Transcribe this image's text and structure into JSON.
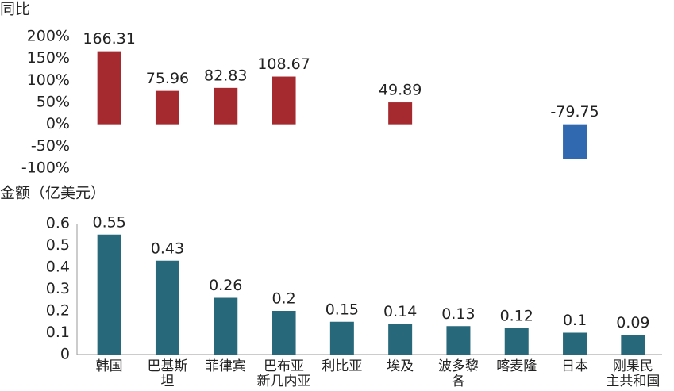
{
  "chart_data": [
    {
      "type": "bar",
      "y_label": "同比",
      "values": [
        166.31,
        75.96,
        82.83,
        108.67,
        null,
        49.89,
        null,
        null,
        -79.75,
        null
      ],
      "positive_color": "#a52a2f",
      "negative_color": "#3169b0",
      "ylim": [
        -100,
        200
      ],
      "yticks": [
        {
          "value": 200,
          "label": "200%"
        },
        {
          "value": 150,
          "label": "150%"
        },
        {
          "value": 100,
          "label": "100%"
        },
        {
          "value": 50,
          "label": "50%"
        },
        {
          "value": 0,
          "label": "0%"
        },
        {
          "value": -50,
          "label": "-50%"
        },
        {
          "value": -100,
          "label": "-100%"
        }
      ]
    },
    {
      "type": "bar",
      "y_label": "金额（亿美元）",
      "categories": [
        "韩国",
        "巴基斯\n坦",
        "菲律宾",
        "巴布亚\n新几内亚",
        "利比亚",
        "埃及",
        "波多黎\n各",
        "喀麦隆",
        "日本",
        "刚果民\n主共和国"
      ],
      "values": [
        0.55,
        0.43,
        0.26,
        0.2,
        0.15,
        0.14,
        0.13,
        0.12,
        0.1,
        0.09
      ],
      "color": "#27697a",
      "ylim": [
        0,
        0.6
      ],
      "yticks": [
        0,
        0.1,
        0.2,
        0.3,
        0.4,
        0.5,
        0.6
      ]
    }
  ]
}
